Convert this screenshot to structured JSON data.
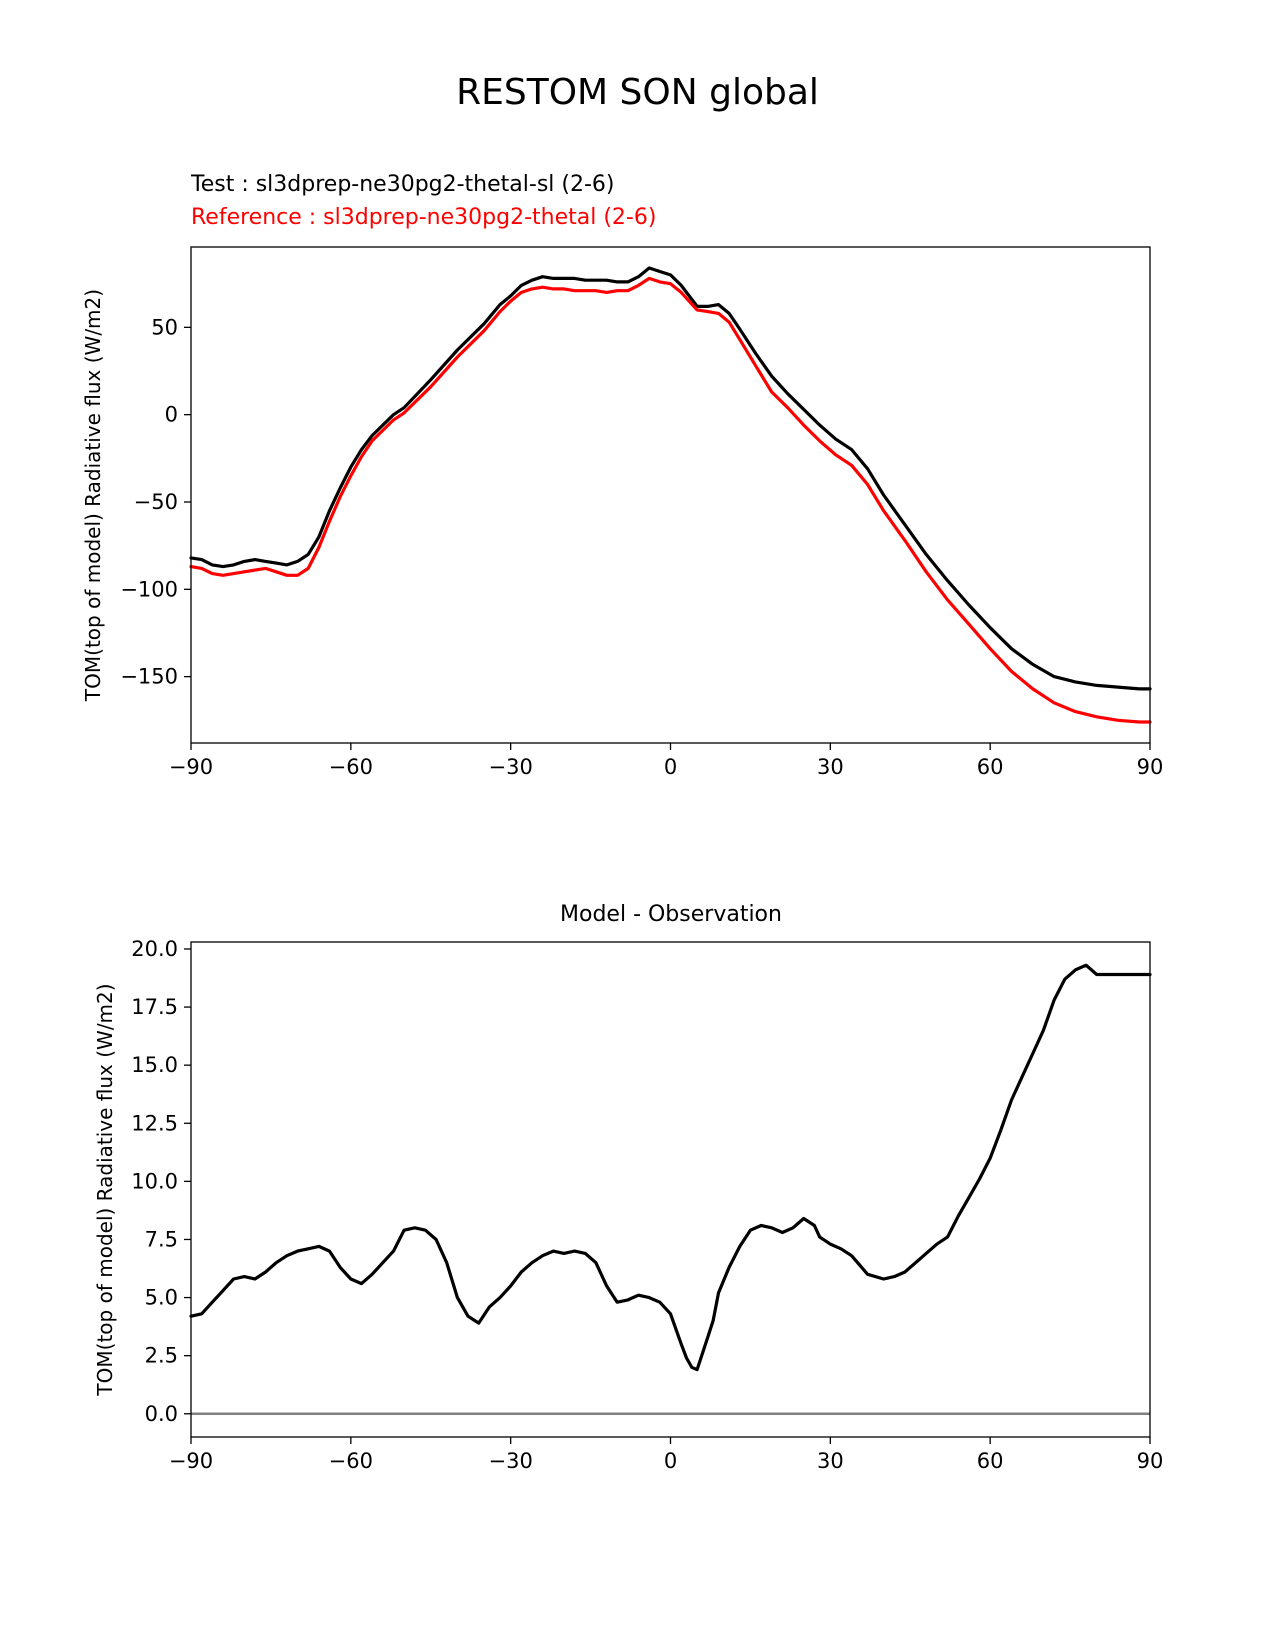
{
  "figure": {
    "suptitle": "RESTOM SON global",
    "test_label": "Test : sl3dprep-ne30pg2-thetal-sl (2-6)",
    "reference_label": "Reference : sl3dprep-ne30pg2-thetal (2-6)",
    "test_color": "#000000",
    "reference_color": "#ff0000"
  },
  "chart_data": [
    {
      "type": "line",
      "title": "",
      "xlabel": "",
      "ylabel": "TOM(top of model) Radiative flux (W/m2)",
      "xlim": [
        -90,
        90
      ],
      "ylim": [
        -188,
        96
      ],
      "xticks": [
        -90,
        -60,
        -30,
        0,
        30,
        60,
        90
      ],
      "xtick_labels": [
        "−90",
        "−60",
        "−30",
        "0",
        "30",
        "60",
        "90"
      ],
      "yticks": [
        50,
        0,
        -50,
        -100,
        -150
      ],
      "ytick_labels": [
        "50",
        "0",
        "−50",
        "−100",
        "−150"
      ],
      "grid": false,
      "series": [
        {
          "name": "Test : sl3dprep-ne30pg2-thetal-sl (2-6)",
          "color": "#000000",
          "x": [
            -90,
            -88,
            -86,
            -84,
            -82,
            -80,
            -78,
            -76,
            -74,
            -72,
            -70,
            -68,
            -66,
            -64,
            -62,
            -60,
            -58,
            -56,
            -54,
            -52,
            -50,
            -45,
            -40,
            -35,
            -32,
            -30,
            -28,
            -26,
            -24,
            -22,
            -20,
            -18,
            -16,
            -14,
            -12,
            -10,
            -8,
            -6,
            -4,
            -2,
            0,
            2,
            5,
            7,
            9,
            11,
            13,
            16,
            19,
            22,
            25,
            28,
            31,
            34,
            37,
            40,
            44,
            48,
            52,
            56,
            60,
            64,
            68,
            72,
            76,
            80,
            84,
            88,
            90
          ],
          "y": [
            -82,
            -83,
            -86,
            -87,
            -86,
            -84,
            -83,
            -84,
            -85,
            -86,
            -84,
            -80,
            -70,
            -55,
            -42,
            -30,
            -20,
            -12,
            -6,
            0,
            4,
            20,
            37,
            52,
            63,
            68,
            74,
            77,
            79,
            78,
            78,
            78,
            77,
            77,
            77,
            76,
            76,
            79,
            84,
            82,
            80,
            74,
            62,
            62,
            63,
            58,
            49,
            35,
            22,
            12,
            3,
            -6,
            -14,
            -20,
            -31,
            -46,
            -63,
            -80,
            -95,
            -109,
            -122,
            -134,
            -143,
            -150,
            -153,
            -155,
            -156,
            -157,
            -157
          ]
        },
        {
          "name": "Reference : sl3dprep-ne30pg2-thetal (2-6)",
          "color": "#ff0000",
          "x": [
            -90,
            -88,
            -86,
            -84,
            -82,
            -80,
            -78,
            -76,
            -74,
            -72,
            -70,
            -68,
            -66,
            -64,
            -62,
            -60,
            -58,
            -56,
            -54,
            -52,
            -50,
            -45,
            -40,
            -35,
            -32,
            -30,
            -28,
            -26,
            -24,
            -22,
            -20,
            -18,
            -16,
            -14,
            -12,
            -10,
            -8,
            -6,
            -4,
            -2,
            0,
            2,
            5,
            7,
            9,
            11,
            13,
            16,
            19,
            22,
            25,
            28,
            31,
            34,
            37,
            40,
            44,
            48,
            52,
            56,
            60,
            64,
            68,
            72,
            76,
            80,
            84,
            88,
            90
          ],
          "y": [
            -87,
            -88,
            -91,
            -92,
            -91,
            -90,
            -89,
            -88,
            -90,
            -92,
            -92,
            -88,
            -76,
            -61,
            -47,
            -35,
            -24,
            -15,
            -9,
            -3,
            1,
            16,
            33,
            48,
            59,
            65,
            70,
            72,
            73,
            72,
            72,
            71,
            71,
            71,
            70,
            71,
            71,
            74,
            78,
            76,
            75,
            70,
            60,
            59,
            58,
            53,
            43,
            28,
            13,
            4,
            -6,
            -15,
            -23,
            -29,
            -40,
            -55,
            -72,
            -90,
            -106,
            -120,
            -134,
            -147,
            -157,
            -165,
            -170,
            -173,
            -175,
            -176,
            -176
          ]
        }
      ]
    },
    {
      "type": "line",
      "title": "Model - Observation",
      "xlabel": "",
      "ylabel": "TOM(top of model) Radiative flux (W/m2)",
      "xlim": [
        -90,
        90
      ],
      "ylim": [
        -1.0,
        20.3
      ],
      "xticks": [
        -90,
        -60,
        -30,
        0,
        30,
        60,
        90
      ],
      "xtick_labels": [
        "−90",
        "−60",
        "−30",
        "0",
        "30",
        "60",
        "90"
      ],
      "yticks": [
        20.0,
        17.5,
        15.0,
        12.5,
        10.0,
        7.5,
        5.0,
        2.5,
        0.0
      ],
      "ytick_labels": [
        "20.0",
        "17.5",
        "15.0",
        "12.5",
        "10.0",
        "7.5",
        "5.0",
        "2.5",
        "0.0"
      ],
      "grid": false,
      "zero_line_color": "#808080",
      "series": [
        {
          "color": "#000000",
          "x": [
            -90,
            -88,
            -86,
            -84,
            -82,
            -80,
            -78,
            -76,
            -74,
            -72,
            -70,
            -68,
            -66,
            -64,
            -62,
            -60,
            -58,
            -56,
            -54,
            -52,
            -50,
            -48,
            -46,
            -44,
            -42,
            -40,
            -38,
            -36,
            -34,
            -32,
            -30,
            -28,
            -26,
            -24,
            -22,
            -20,
            -18,
            -16,
            -14,
            -12,
            -10,
            -8,
            -6,
            -4,
            -2,
            0,
            2,
            3,
            4,
            5,
            6,
            7,
            8,
            9,
            11,
            13,
            15,
            17,
            19,
            21,
            23,
            25,
            27,
            28,
            30,
            32,
            34,
            37,
            40,
            42,
            44,
            46,
            48,
            50,
            52,
            54,
            56,
            58,
            60,
            62,
            64,
            66,
            68,
            70,
            72,
            74,
            76,
            78,
            80,
            82,
            84,
            86,
            88,
            90
          ],
          "y": [
            4.2,
            4.3,
            4.8,
            5.3,
            5.8,
            5.9,
            5.8,
            6.1,
            6.5,
            6.8,
            7.0,
            7.1,
            7.2,
            7.0,
            6.3,
            5.8,
            5.6,
            6.0,
            6.5,
            7.0,
            7.9,
            8.0,
            7.9,
            7.5,
            6.5,
            5.0,
            4.2,
            3.9,
            4.6,
            5.0,
            5.5,
            6.1,
            6.5,
            6.8,
            7.0,
            6.9,
            7.0,
            6.9,
            6.5,
            5.5,
            4.8,
            4.9,
            5.1,
            5.0,
            4.8,
            4.3,
            3.0,
            2.4,
            2.0,
            1.9,
            2.6,
            3.3,
            4.0,
            5.2,
            6.3,
            7.2,
            7.9,
            8.1,
            8.0,
            7.8,
            8.0,
            8.4,
            8.1,
            7.6,
            7.3,
            7.1,
            6.8,
            6.0,
            5.8,
            5.9,
            6.1,
            6.5,
            6.9,
            7.3,
            7.6,
            8.5,
            9.3,
            10.1,
            11.0,
            12.2,
            13.5,
            14.5,
            15.5,
            16.5,
            17.8,
            18.7,
            19.1,
            19.3,
            18.9,
            18.9,
            18.9,
            18.9,
            18.9,
            18.9
          ]
        }
      ]
    }
  ]
}
